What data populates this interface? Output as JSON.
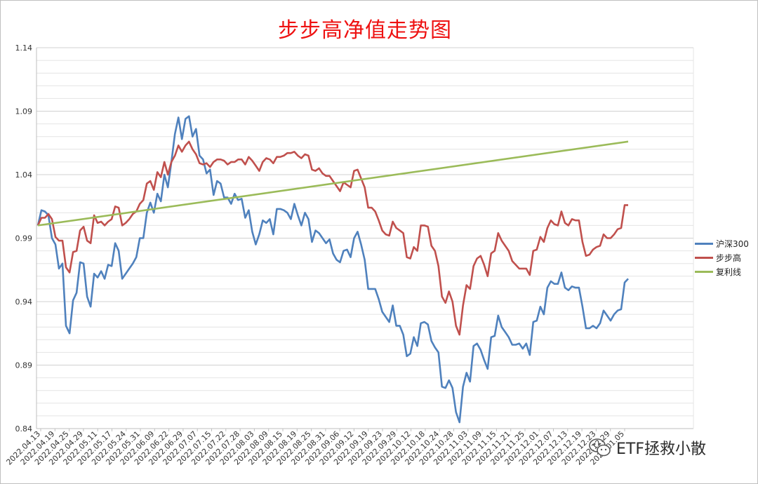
{
  "chart_data": {
    "type": "line",
    "title": "步步高净值走势图",
    "ylim": [
      0.84,
      1.14
    ],
    "yticks": [
      "0.84",
      "0.89",
      "0.94",
      "0.99",
      "1.04",
      "1.09",
      "1.14"
    ],
    "xlabels": [
      "2022.04.13",
      "2022.04.19",
      "2022.04.25",
      "2022.04.29",
      "2022.05.11",
      "2022.05.17",
      "2022.05.24",
      "2022.05.31",
      "2022.06.09",
      "2022.06.22",
      "2022.06.29",
      "2022.07.07",
      "2022.07.15",
      "2022.07.22",
      "2022.07.28",
      "2022.08.03",
      "2022.08.09",
      "2022.08.15",
      "2022.08.19",
      "2022.08.25",
      "2022.08.31",
      "2022.09.06",
      "2022.09.12",
      "2022.09.19",
      "2022.09.23",
      "2022.09.29",
      "2022.10.12",
      "2022.10.18",
      "2022.10.24",
      "2022.10.28",
      "2022.11.03",
      "2022.11.09",
      "2022.11.15",
      "2022.11.21",
      "2022.11.25",
      "2022.12.01",
      "2022.12.07",
      "2022.12.13",
      "2022.12.19",
      "2022.12.23",
      "2022.12.29",
      "2023.01.05"
    ],
    "legend_position": "right",
    "grid": true,
    "series": [
      {
        "name": "沪深300",
        "color": "#4f81bd",
        "values": [
          1.0,
          1.012,
          1.011,
          1.008,
          0.99,
          0.985,
          0.966,
          0.97,
          0.921,
          0.915,
          0.941,
          0.947,
          0.971,
          0.97,
          0.944,
          0.936,
          0.962,
          0.959,
          0.964,
          0.958,
          0.969,
          0.968,
          0.986,
          0.98,
          0.958,
          0.962,
          0.966,
          0.97,
          0.975,
          0.99,
          0.99,
          1.01,
          1.018,
          1.01,
          1.025,
          1.019,
          1.04,
          1.03,
          1.05,
          1.072,
          1.085,
          1.068,
          1.084,
          1.086,
          1.07,
          1.076,
          1.055,
          1.052,
          1.041,
          1.044,
          1.024,
          1.035,
          1.033,
          1.022,
          1.022,
          1.017,
          1.025,
          1.02,
          1.021,
          1.006,
          1.012,
          0.995,
          0.985,
          0.993,
          1.004,
          1.002,
          1.005,
          0.993,
          1.013,
          1.013,
          1.012,
          1.01,
          1.005,
          1.017,
          1.008,
          1.0,
          1.01,
          1.005,
          0.987,
          0.996,
          0.994,
          0.99,
          0.986,
          0.989,
          0.978,
          0.973,
          0.971,
          0.98,
          0.981,
          0.975,
          0.99,
          0.995,
          0.985,
          0.973,
          0.95,
          0.95,
          0.95,
          0.942,
          0.932,
          0.928,
          0.924,
          0.937,
          0.921,
          0.921,
          0.914,
          0.897,
          0.899,
          0.912,
          0.905,
          0.923,
          0.924,
          0.922,
          0.909,
          0.904,
          0.9,
          0.873,
          0.872,
          0.878,
          0.872,
          0.853,
          0.845,
          0.873,
          0.884,
          0.877,
          0.905,
          0.907,
          0.902,
          0.894,
          0.887,
          0.912,
          0.913,
          0.929,
          0.92,
          0.916,
          0.912,
          0.906,
          0.906,
          0.907,
          0.903,
          0.907,
          0.898,
          0.924,
          0.925,
          0.936,
          0.93,
          0.951,
          0.956,
          0.954,
          0.954,
          0.963,
          0.951,
          0.949,
          0.952,
          0.951,
          0.951,
          0.936,
          0.919,
          0.919,
          0.921,
          0.919,
          0.923,
          0.933,
          0.929,
          0.925,
          0.93,
          0.933,
          0.934,
          0.955,
          0.958
        ]
      },
      {
        "name": "步步高",
        "color": "#c0504d",
        "values": [
          1.0,
          1.006,
          1.006,
          1.009,
          1.005,
          0.991,
          0.988,
          0.988,
          0.967,
          0.963,
          0.979,
          0.98,
          0.996,
          0.999,
          0.988,
          0.986,
          1.008,
          1.002,
          1.003,
          1.0,
          1.003,
          1.005,
          1.015,
          1.014,
          1.0,
          1.002,
          1.005,
          1.009,
          1.011,
          1.017,
          1.02,
          1.033,
          1.035,
          1.028,
          1.042,
          1.038,
          1.05,
          1.04,
          1.05,
          1.055,
          1.063,
          1.058,
          1.063,
          1.066,
          1.06,
          1.056,
          1.049,
          1.048,
          1.049,
          1.046,
          1.05,
          1.052,
          1.052,
          1.051,
          1.048,
          1.05,
          1.05,
          1.052,
          1.052,
          1.048,
          1.054,
          1.051,
          1.047,
          1.043,
          1.05,
          1.053,
          1.052,
          1.049,
          1.054,
          1.054,
          1.055,
          1.057,
          1.057,
          1.058,
          1.055,
          1.053,
          1.056,
          1.055,
          1.044,
          1.043,
          1.045,
          1.041,
          1.039,
          1.039,
          1.035,
          1.031,
          1.027,
          1.034,
          1.032,
          1.03,
          1.043,
          1.044,
          1.037,
          1.03,
          1.014,
          1.014,
          1.011,
          1.004,
          0.996,
          0.993,
          0.992,
          1.003,
          0.998,
          0.996,
          0.994,
          0.975,
          0.974,
          0.983,
          0.98,
          1.0,
          1.0,
          0.999,
          0.984,
          0.98,
          0.968,
          0.944,
          0.939,
          0.948,
          0.94,
          0.921,
          0.914,
          0.937,
          0.953,
          0.95,
          0.968,
          0.974,
          0.976,
          0.969,
          0.96,
          0.978,
          0.98,
          0.994,
          0.988,
          0.984,
          0.98,
          0.972,
          0.969,
          0.966,
          0.966,
          0.966,
          0.961,
          0.98,
          0.981,
          0.991,
          0.987,
          0.998,
          1.004,
          1.001,
          1.0,
          1.011,
          1.002,
          1.0,
          1.005,
          1.004,
          1.004,
          0.987,
          0.976,
          0.977,
          0.981,
          0.983,
          0.984,
          0.993,
          0.99,
          0.99,
          0.993,
          0.997,
          0.998,
          1.016,
          1.016
        ]
      },
      {
        "name": "复利线",
        "color": "#9bbb59",
        "values": [
          1.0,
          1.0661
        ]
      }
    ]
  },
  "watermark": {
    "text": "ETF拯救小散",
    "icon": "wechat-icon"
  }
}
